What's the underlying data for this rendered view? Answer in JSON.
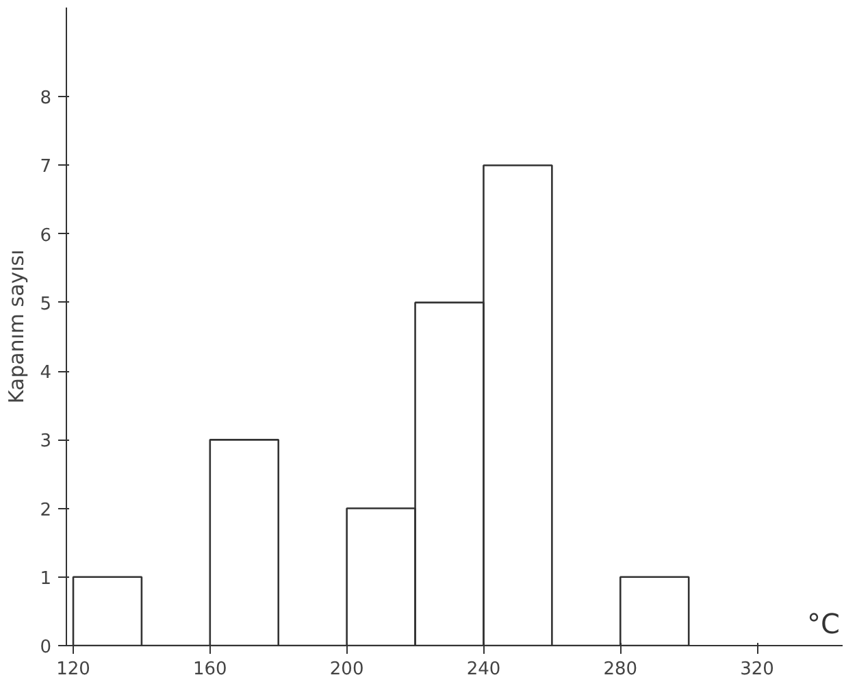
{
  "chart_data": {
    "type": "histogram",
    "ylabel": "Kapanım sayısı",
    "xlabel": "°C",
    "bins": [
      120,
      140,
      160,
      180,
      200,
      220,
      240,
      260,
      280,
      300
    ],
    "values": [
      1,
      0,
      3,
      0,
      2,
      5,
      7,
      0,
      1
    ],
    "color": "#333333",
    "xlim": [
      118,
      345
    ],
    "xticks": [
      120,
      160,
      200,
      240,
      280,
      320
    ],
    "ylim": [
      0,
      9.3
    ],
    "yticks": [
      0,
      1,
      2,
      3,
      4,
      5,
      6,
      7,
      8
    ],
    "grid": false
  }
}
